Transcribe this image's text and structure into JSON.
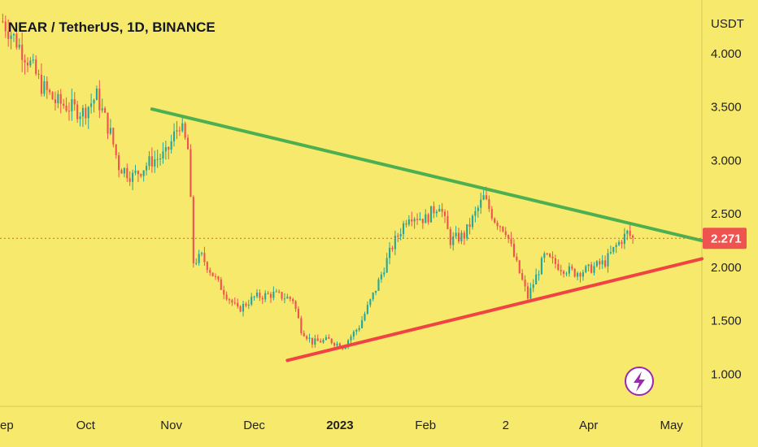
{
  "chart_data": {
    "type": "candlestick",
    "title": "NEAR / TetherUS, 1D, BINANCE",
    "currency_label": "USDT",
    "current_price": "2.271",
    "y_ticks": [
      "4.000",
      "3.500",
      "3.000",
      "2.500",
      "2.000",
      "1.500",
      "1.000"
    ],
    "y_tick_values": [
      4.0,
      3.5,
      3.0,
      2.5,
      2.0,
      1.5,
      1.0
    ],
    "x_ticks": [
      "Sep",
      "Oct",
      "Nov",
      "Dec",
      "2023",
      "Feb",
      "2",
      "Apr",
      "May"
    ],
    "x_tick_dates": [
      "2022-09-01",
      "2022-10-01",
      "2022-11-01",
      "2022-12-01",
      "2023-01-01",
      "2023-02-01",
      "2023-03-02",
      "2023-04-01",
      "2023-05-01"
    ],
    "ylim": [
      0.7,
      4.5
    ],
    "xlim": [
      "2022-08-31",
      "2023-05-12"
    ],
    "close_path": [
      [
        "2022-09-01",
        4.3
      ],
      [
        "2022-09-05",
        4.15
      ],
      [
        "2022-09-10",
        3.95
      ],
      [
        "2022-09-15",
        3.7
      ],
      [
        "2022-09-20",
        3.55
      ],
      [
        "2022-09-25",
        3.5
      ],
      [
        "2022-09-30",
        3.45
      ],
      [
        "2022-10-05",
        3.6
      ],
      [
        "2022-10-10",
        3.25
      ],
      [
        "2022-10-13",
        2.95
      ],
      [
        "2022-10-18",
        2.85
      ],
      [
        "2022-10-25",
        3.0
      ],
      [
        "2022-10-30",
        3.05
      ],
      [
        "2022-11-04",
        3.35
      ],
      [
        "2022-11-07",
        3.1
      ],
      [
        "2022-11-08",
        2.6
      ],
      [
        "2022-11-09",
        2.05
      ],
      [
        "2022-11-12",
        2.1
      ],
      [
        "2022-11-18",
        1.85
      ],
      [
        "2022-11-25",
        1.6
      ],
      [
        "2022-12-01",
        1.72
      ],
      [
        "2022-12-08",
        1.75
      ],
      [
        "2022-12-15",
        1.7
      ],
      [
        "2022-12-18",
        1.42
      ],
      [
        "2022-12-22",
        1.3
      ],
      [
        "2022-12-28",
        1.32
      ],
      [
        "2023-01-02",
        1.26
      ],
      [
        "2023-01-08",
        1.45
      ],
      [
        "2023-01-14",
        1.8
      ],
      [
        "2023-01-20",
        2.2
      ],
      [
        "2023-01-26",
        2.5
      ],
      [
        "2023-02-01",
        2.45
      ],
      [
        "2023-02-06",
        2.6
      ],
      [
        "2023-02-10",
        2.25
      ],
      [
        "2023-02-15",
        2.3
      ],
      [
        "2023-02-22",
        2.65
      ],
      [
        "2023-02-26",
        2.45
      ],
      [
        "2023-03-02",
        2.35
      ],
      [
        "2023-03-05",
        2.1
      ],
      [
        "2023-03-10",
        1.72
      ],
      [
        "2023-03-12",
        1.85
      ],
      [
        "2023-03-16",
        2.1
      ],
      [
        "2023-03-22",
        2.0
      ],
      [
        "2023-03-27",
        1.95
      ],
      [
        "2023-04-01",
        1.98
      ],
      [
        "2023-04-07",
        2.05
      ],
      [
        "2023-04-11",
        2.2
      ],
      [
        "2023-04-15",
        2.32
      ],
      [
        "2023-04-17",
        2.271
      ]
    ],
    "trendlines": [
      {
        "name": "resistance",
        "color": "#4caf50",
        "points": [
          [
            "2022-10-25",
            3.48
          ],
          [
            "2023-05-12",
            2.25
          ]
        ]
      },
      {
        "name": "support",
        "color": "#f04444",
        "points": [
          [
            "2022-12-13",
            1.13
          ],
          [
            "2023-05-12",
            2.08
          ]
        ]
      }
    ],
    "colors": {
      "background": "#f7e96b",
      "up_candle": "#26a69a",
      "down_candle": "#ef5350",
      "price_line": "#ef5350",
      "price_tag": "#ef5350",
      "lightning_badge": "#9c27b0"
    }
  }
}
